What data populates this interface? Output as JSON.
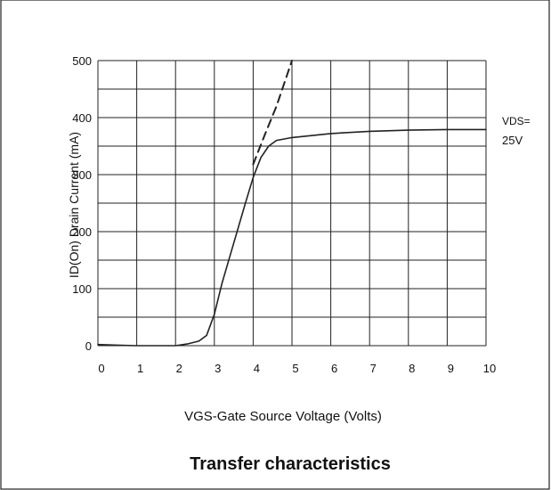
{
  "chart_data": {
    "type": "line",
    "title": "Transfer characteristics",
    "xlabel": "VGS-Gate Source Voltage (Volts)",
    "ylabel": "ID(On) Drain Current  (mA)",
    "xlim": [
      0,
      10
    ],
    "ylim": [
      0,
      500
    ],
    "x_ticks": [
      "0",
      "1",
      "2",
      "3",
      "4",
      "5",
      "6",
      "7",
      "8",
      "9",
      "10"
    ],
    "y_ticks": [
      {
        "value": 0,
        "label": "0"
      },
      {
        "value": 100,
        "label": "100"
      },
      {
        "value": 200,
        "label": "200"
      },
      {
        "value": 300,
        "label": "300"
      },
      {
        "value": 400,
        "label": "400"
      },
      {
        "value": 500,
        "label": "500"
      }
    ],
    "grid": true,
    "annotation": {
      "line1": "VDS=",
      "line2": "25V"
    },
    "series": [
      {
        "style": "solid",
        "x": [
          0,
          0.5,
          1,
          1.5,
          2,
          2.3,
          2.6,
          2.8,
          3.0,
          3.2,
          3.5,
          3.8,
          4.0,
          4.2,
          4.4,
          4.6,
          5,
          6,
          7,
          8,
          9,
          10
        ],
        "y": [
          2,
          1,
          0,
          0,
          0,
          3,
          8,
          18,
          55,
          110,
          180,
          250,
          295,
          330,
          350,
          360,
          365,
          372,
          376,
          378,
          379,
          379
        ]
      },
      {
        "style": "dashed",
        "x": [
          4.0,
          4.3,
          4.6,
          4.8,
          5.0
        ],
        "y": [
          318,
          370,
          420,
          460,
          500
        ]
      }
    ]
  }
}
